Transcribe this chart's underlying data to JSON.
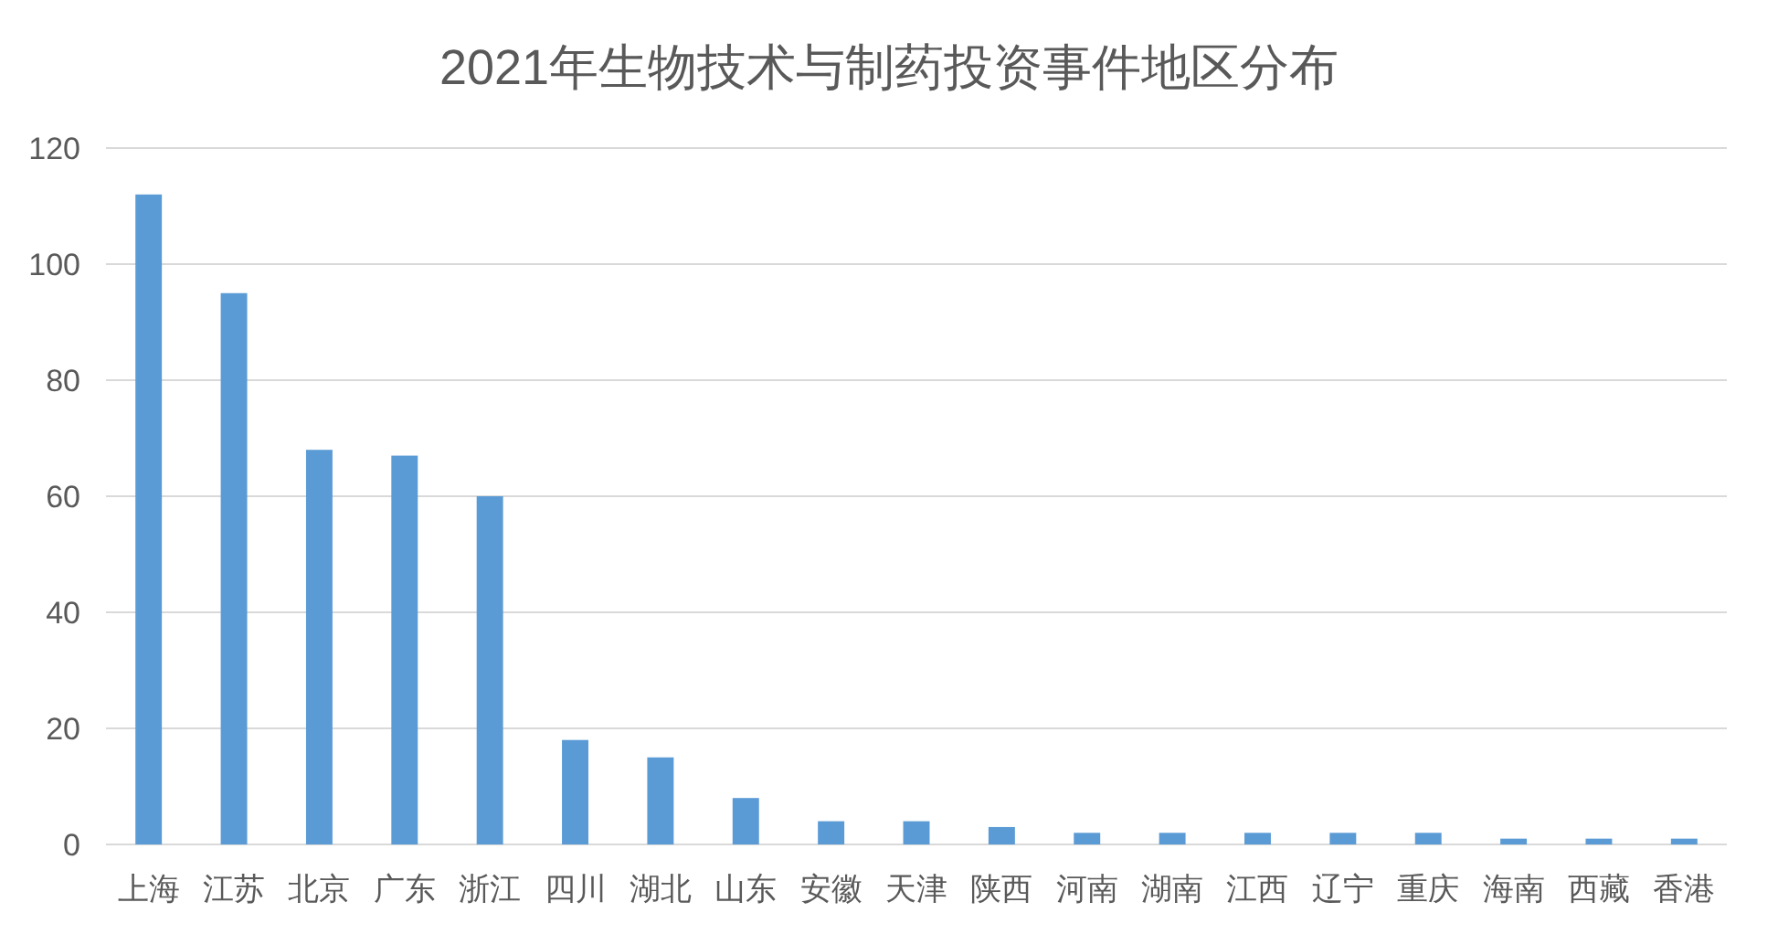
{
  "chart_data": {
    "type": "bar",
    "title": "2021年生物技术与制药投资事件地区分布",
    "categories": [
      "上海",
      "江苏",
      "北京",
      "广东",
      "浙江",
      "四川",
      "湖北",
      "山东",
      "安徽",
      "天津",
      "陕西",
      "河南",
      "湖南",
      "江西",
      "辽宁",
      "重庆",
      "海南",
      "西藏",
      "香港"
    ],
    "values": [
      112,
      95,
      68,
      67,
      60,
      18,
      15,
      8,
      4,
      4,
      3,
      2,
      2,
      2,
      2,
      2,
      1,
      1,
      1
    ],
    "color": "#5b9bd5",
    "ylim": [
      0,
      120
    ],
    "yticks": [
      0,
      20,
      40,
      60,
      80,
      100,
      120
    ],
    "grid": "y"
  }
}
